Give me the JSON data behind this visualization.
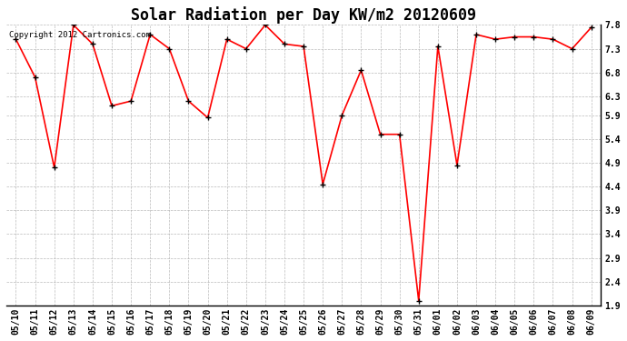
{
  "title": "Solar Radiation per Day KW/m2 20120609",
  "copyright_text": "Copyright 2012 Cartronics.com",
  "x_labels": [
    "05/10",
    "05/11",
    "05/12",
    "05/13",
    "05/14",
    "05/15",
    "05/16",
    "05/17",
    "05/18",
    "05/19",
    "05/20",
    "05/21",
    "05/22",
    "05/23",
    "05/24",
    "05/25",
    "05/26",
    "05/27",
    "05/28",
    "05/29",
    "05/30",
    "05/31",
    "06/01",
    "06/02",
    "06/03",
    "06/04",
    "06/05",
    "06/06",
    "06/07",
    "06/08",
    "06/09"
  ],
  "y_values": [
    7.5,
    6.7,
    4.8,
    7.8,
    7.4,
    6.1,
    6.2,
    7.6,
    7.3,
    6.2,
    5.85,
    7.5,
    7.3,
    7.8,
    7.4,
    7.35,
    4.45,
    5.9,
    6.85,
    5.5,
    5.5,
    2.0,
    7.35,
    4.85,
    7.6,
    7.5,
    7.55,
    7.55,
    7.5,
    7.3,
    7.75
  ],
  "line_color": "#FF0000",
  "marker_color": "#000000",
  "background_color": "#FFFFFF",
  "grid_color": "#AAAAAA",
  "ylim_min": 1.9,
  "ylim_max": 7.8,
  "yticks": [
    1.9,
    2.4,
    2.9,
    3.4,
    3.9,
    4.4,
    4.9,
    5.4,
    5.9,
    6.3,
    6.8,
    7.3,
    7.8
  ],
  "title_fontsize": 12,
  "tick_fontsize": 7,
  "copyright_fontsize": 6.5,
  "fig_width": 6.9,
  "fig_height": 3.75,
  "dpi": 100
}
